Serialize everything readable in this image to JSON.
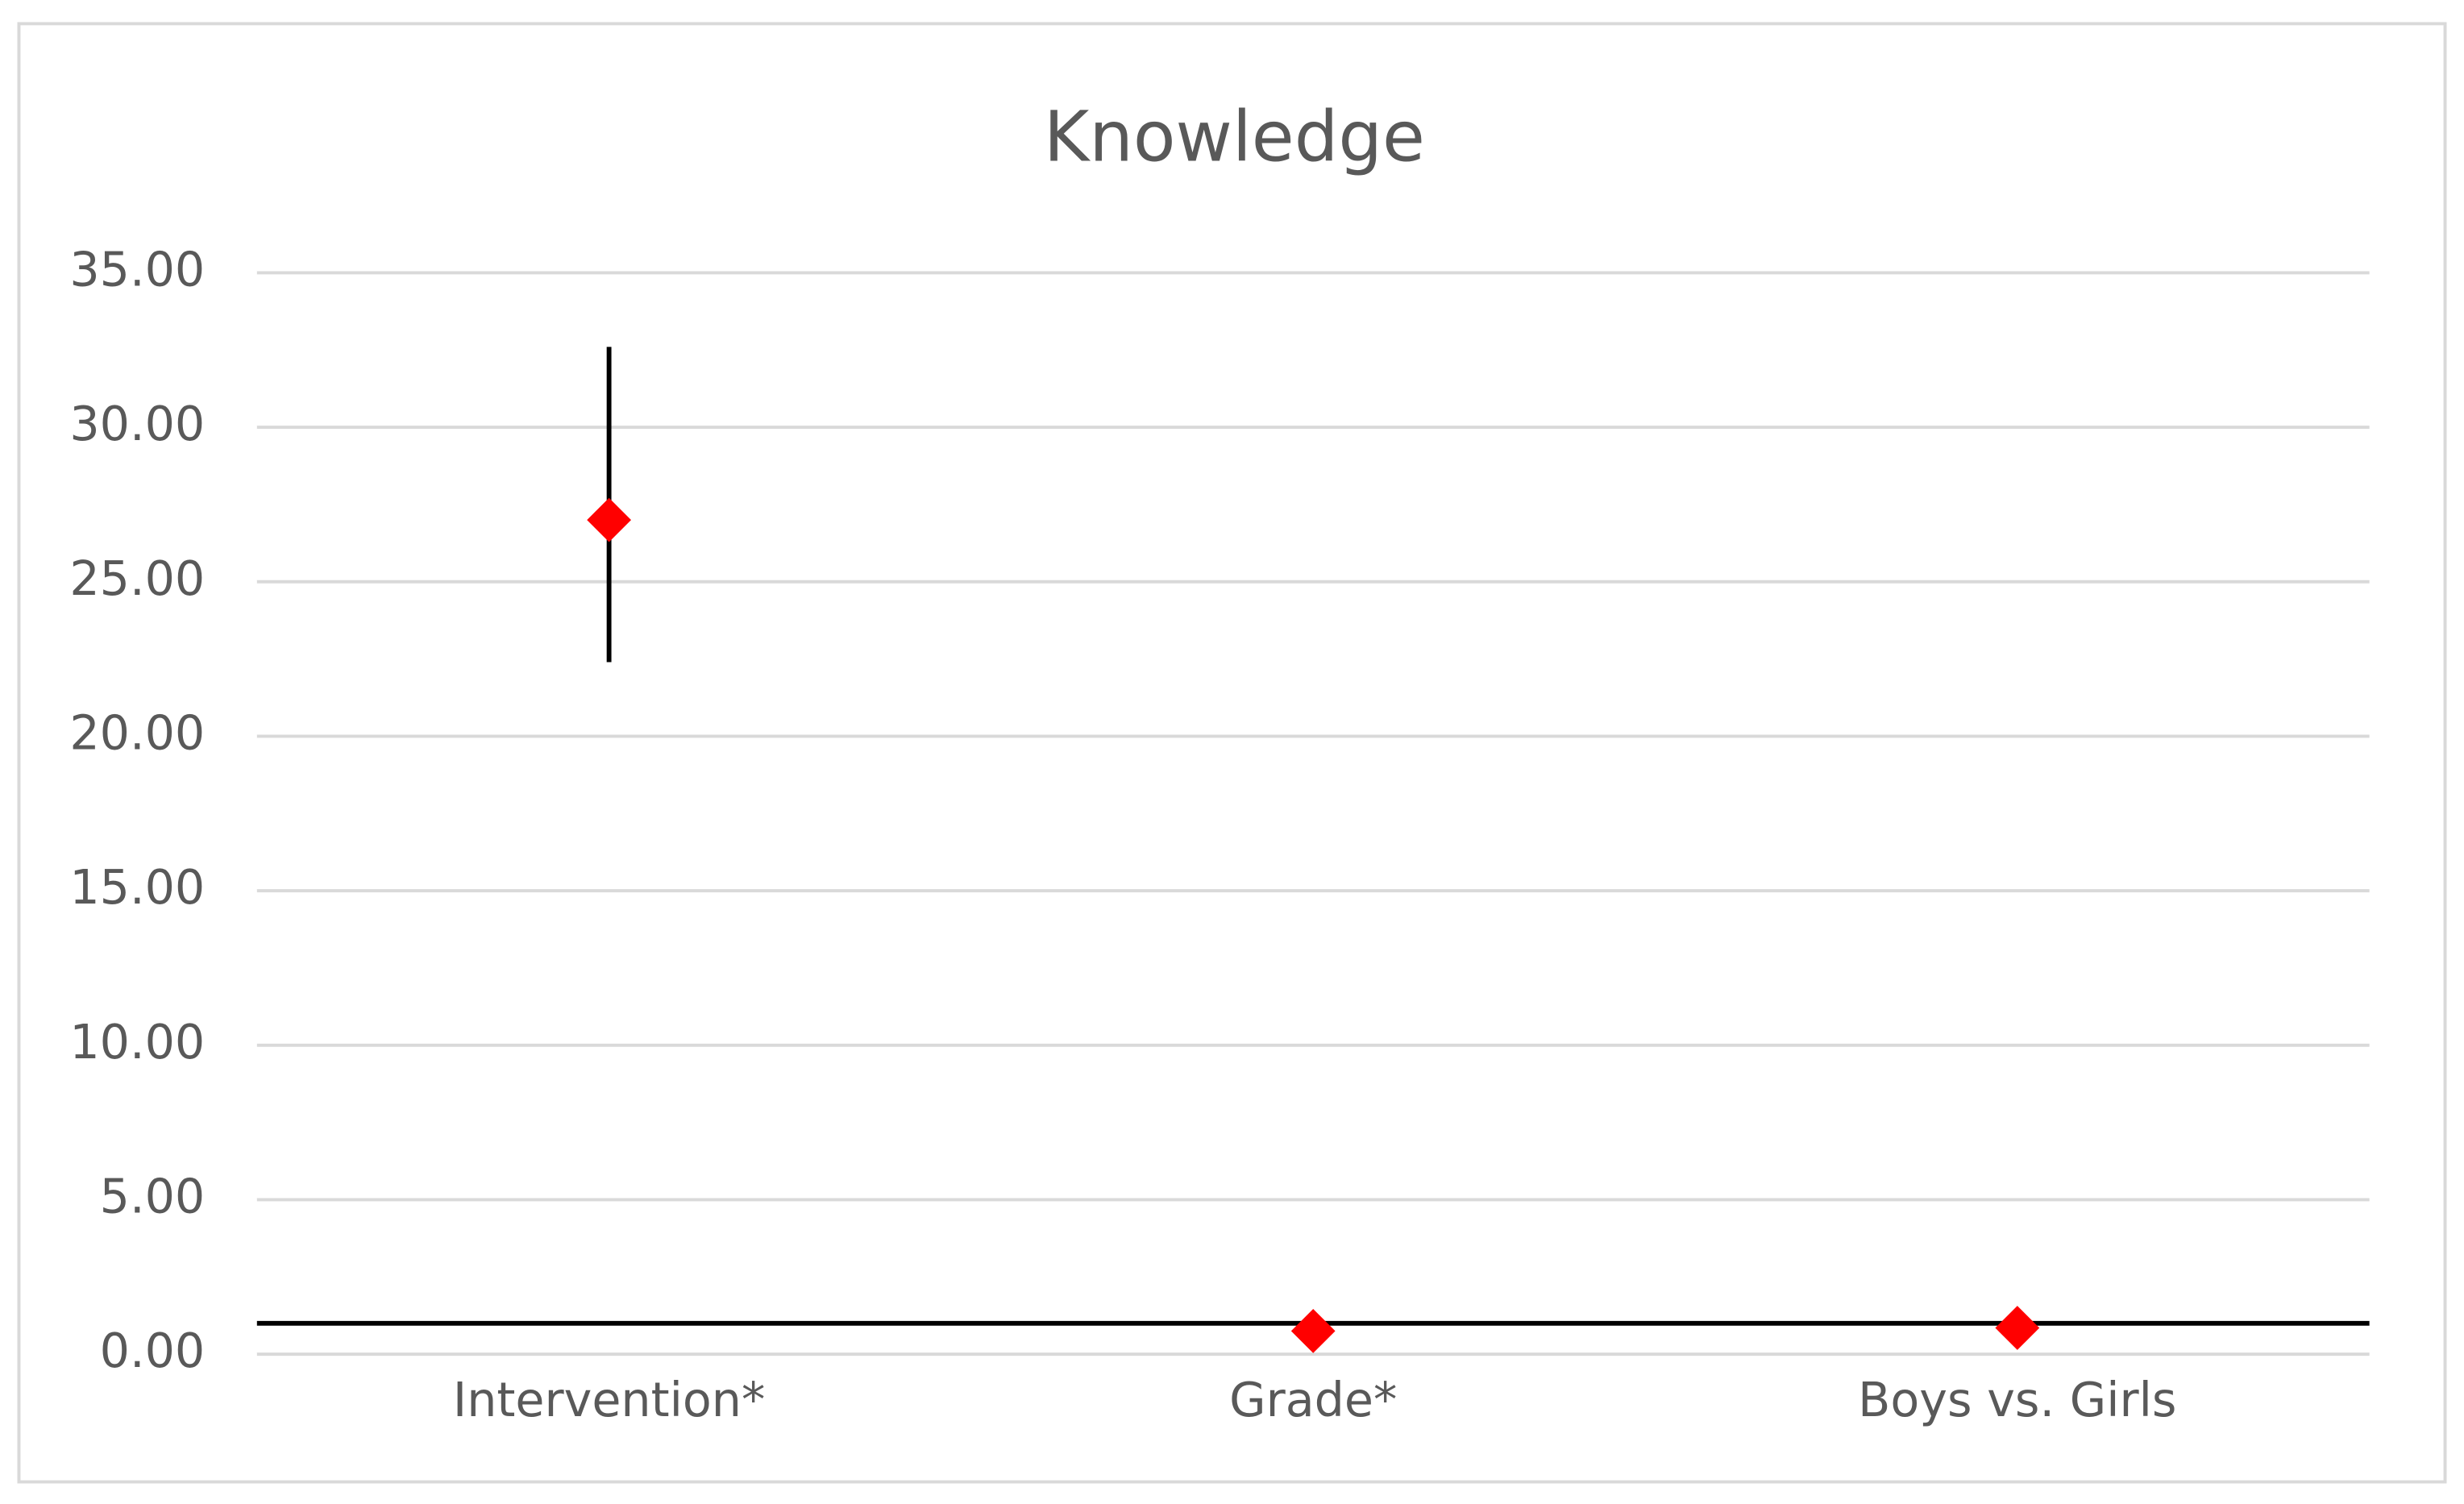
{
  "chart_data": {
    "type": "scatter",
    "title": "Knowledge",
    "categories": [
      "Intervention*",
      "Grade*",
      "Boys vs. Girls"
    ],
    "series": [
      {
        "name": "Knowledge",
        "color": "#ff0000",
        "values": [
          27.0,
          0.75,
          0.85
        ],
        "ci_low": [
          22.4,
          null,
          null
        ],
        "ci_high": [
          32.6,
          null,
          null
        ]
      }
    ],
    "reference_line": 1,
    "ylim": [
      0,
      35
    ],
    "yticks": [
      {
        "value": 0,
        "label": "0.00"
      },
      {
        "value": 5,
        "label": "5.00"
      },
      {
        "value": 10,
        "label": "10.00"
      },
      {
        "value": 15,
        "label": "15.00"
      },
      {
        "value": 20,
        "label": "20.00"
      },
      {
        "value": 25,
        "label": "25.00"
      },
      {
        "value": 30,
        "label": "30.00"
      },
      {
        "value": 35,
        "label": "35.00"
      }
    ],
    "grid": true
  }
}
